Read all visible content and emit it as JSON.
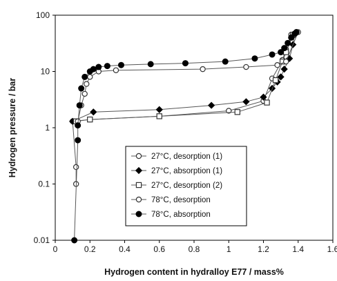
{
  "chart_data": {
    "type": "scatter",
    "title": "",
    "xlabel": "Hydrogen content in hydralloy E77 / mass%",
    "ylabel": "Hydrogen pressure / bar",
    "xlim": [
      0,
      1.6
    ],
    "ylim": [
      0.01,
      100
    ],
    "yscale": "log",
    "x_ticks": [
      "0",
      "0.2",
      "0.4",
      "0.6",
      "0.8",
      "1",
      "1.2",
      "1.4",
      "1.6"
    ],
    "y_ticks": [
      "0.01",
      "0.1",
      "1",
      "10",
      "100"
    ],
    "grid": false,
    "legend_position": "center-right, inside plot",
    "series": [
      {
        "name": "27°C, desorption (1)",
        "marker": "circle-open",
        "color": "#333333",
        "x": [
          1.36,
          1.33,
          1.31,
          1.25,
          1.2,
          1.0,
          0.6,
          0.2,
          0.1,
          0.12,
          0.12
        ],
        "y": [
          45,
          25,
          16,
          7.5,
          3.0,
          2.0,
          1.6,
          1.4,
          1.3,
          0.2,
          0.1
        ]
      },
      {
        "name": "27°C, absorption (1)",
        "marker": "diamond-filled",
        "color": "#000000",
        "x": [
          0.1,
          0.22,
          0.6,
          0.9,
          1.1,
          1.2,
          1.25,
          1.28,
          1.3,
          1.32,
          1.35,
          1.37,
          1.38
        ],
        "y": [
          1.3,
          1.9,
          2.1,
          2.5,
          2.9,
          3.5,
          5,
          6.5,
          8,
          11,
          17,
          30,
          45
        ]
      },
      {
        "name": "27°C, desorption (2)",
        "marker": "square-open",
        "color": "#333333",
        "x": [
          1.37,
          1.33,
          1.31,
          1.27,
          1.22,
          1.05,
          0.6,
          0.2,
          0.12
        ],
        "y": [
          45,
          22,
          15,
          7,
          2.8,
          1.9,
          1.6,
          1.4,
          1.3
        ]
      },
      {
        "name": "78°C, desorption",
        "marker": "circle-open",
        "color": "#333333",
        "x": [
          1.4,
          1.33,
          1.28,
          1.1,
          0.85,
          0.35,
          0.25,
          0.2,
          0.18,
          0.17,
          0.15,
          0.13
        ],
        "y": [
          50,
          15,
          13,
          12,
          11,
          10.5,
          10,
          8,
          6,
          4,
          2.5,
          1.3
        ]
      },
      {
        "name": "78°C, absorption",
        "marker": "circle-filled",
        "color": "#000000",
        "x": [
          0.11,
          0.13,
          0.13,
          0.14,
          0.15,
          0.17,
          0.2,
          0.22,
          0.25,
          0.3,
          0.38,
          0.55,
          0.75,
          0.98,
          1.15,
          1.25,
          1.3,
          1.32,
          1.34,
          1.36,
          1.38,
          1.39
        ],
        "y": [
          0.01,
          0.6,
          1.1,
          2.5,
          5,
          8,
          10,
          11,
          12,
          12.5,
          13,
          13.5,
          14,
          15,
          17,
          20,
          22,
          26,
          32,
          40,
          47,
          50
        ]
      }
    ]
  }
}
